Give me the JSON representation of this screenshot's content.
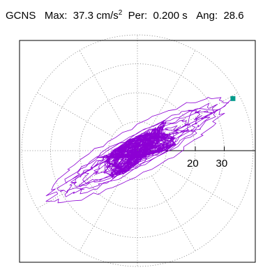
{
  "header": {
    "station": "GCNS",
    "max_label": "Max:",
    "max_value": "37.3 cm/s",
    "max_exp": "2",
    "per_label": "Per:",
    "per_value": "0.200 s",
    "ang_label": "Ang:",
    "ang_value": "28.6"
  },
  "chart_data": {
    "type": "polar-orbit",
    "max_amplitude": 37.3,
    "angle_deg": 28.6,
    "rings": [
      10,
      20,
      30,
      40
    ],
    "ring_labels": [
      "20",
      "30"
    ],
    "spokes_deg": [
      0,
      30,
      60,
      90,
      120,
      150,
      180,
      210,
      240,
      270,
      300,
      330
    ],
    "grid": true,
    "end_point": {
      "x": 33.0,
      "y": 18.0
    },
    "trace": {
      "major_amplitudes": [
        34,
        30,
        27,
        24,
        20,
        16,
        12,
        9,
        6,
        4
      ],
      "minor_ratio": 0.18,
      "core_radius": 5,
      "color": "#8c00d4"
    },
    "colors": {
      "trace": "#8c00d4",
      "marker": "#009b8a",
      "grid": "#888888",
      "axis": "#000000",
      "frame": "#000000"
    }
  }
}
